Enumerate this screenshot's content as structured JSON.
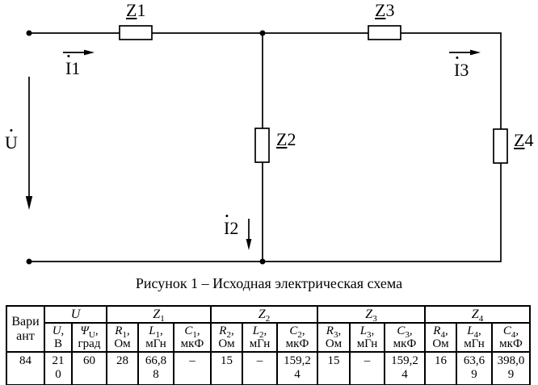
{
  "figure": {
    "caption": "Рисунок 1 – Исходная электрическая схема",
    "circuit": {
      "impedances": [
        {
          "symbol": "Z",
          "index": "1"
        },
        {
          "symbol": "Z",
          "index": "2"
        },
        {
          "symbol": "Z",
          "index": "3"
        },
        {
          "symbol": "Z",
          "index": "4"
        }
      ],
      "currents": [
        {
          "symbol": "I",
          "index": "1"
        },
        {
          "symbol": "I",
          "index": "2"
        },
        {
          "symbol": "I",
          "index": "3"
        }
      ],
      "voltage": {
        "symbol": "U"
      },
      "line_color": "#000000"
    }
  },
  "table": {
    "corner_header": "Вариант",
    "groups": [
      {
        "symbol": "U",
        "sub": "",
        "span": 2
      },
      {
        "symbol": "Z",
        "sub": "1",
        "span": 3
      },
      {
        "symbol": "Z",
        "sub": "2",
        "span": 3
      },
      {
        "symbol": "Z",
        "sub": "3",
        "span": 3
      },
      {
        "symbol": "Z",
        "sub": "4",
        "span": 3
      }
    ],
    "columns": [
      {
        "symbol": "U",
        "sub": "",
        "unit": "В"
      },
      {
        "symbol": "Ψ",
        "sub": "U",
        "unit": "град"
      },
      {
        "symbol": "R",
        "sub": "1",
        "unit": "Ом"
      },
      {
        "symbol": "L",
        "sub": "1",
        "unit": "мГн"
      },
      {
        "symbol": "C",
        "sub": "1",
        "unit": "мкФ"
      },
      {
        "symbol": "R",
        "sub": "2",
        "unit": "Ом"
      },
      {
        "symbol": "L",
        "sub": "2",
        "unit": "мГн"
      },
      {
        "symbol": "C",
        "sub": "2",
        "unit": "мкФ"
      },
      {
        "symbol": "R",
        "sub": "3",
        "unit": "Ом"
      },
      {
        "symbol": "L",
        "sub": "3",
        "unit": "мГн"
      },
      {
        "symbol": "C",
        "sub": "3",
        "unit": "мкФ"
      },
      {
        "symbol": "R",
        "sub": "4",
        "unit": "Ом"
      },
      {
        "symbol": "L",
        "sub": "4",
        "unit": "мГн"
      },
      {
        "symbol": "C",
        "sub": "4",
        "unit": "мкФ"
      }
    ],
    "row": {
      "variant": "84",
      "values": [
        "210",
        "60",
        "28",
        "66,88",
        "–",
        "15",
        "–",
        "159,24",
        "15",
        "–",
        "159,24",
        "16",
        "63,69",
        "398,09"
      ]
    }
  }
}
